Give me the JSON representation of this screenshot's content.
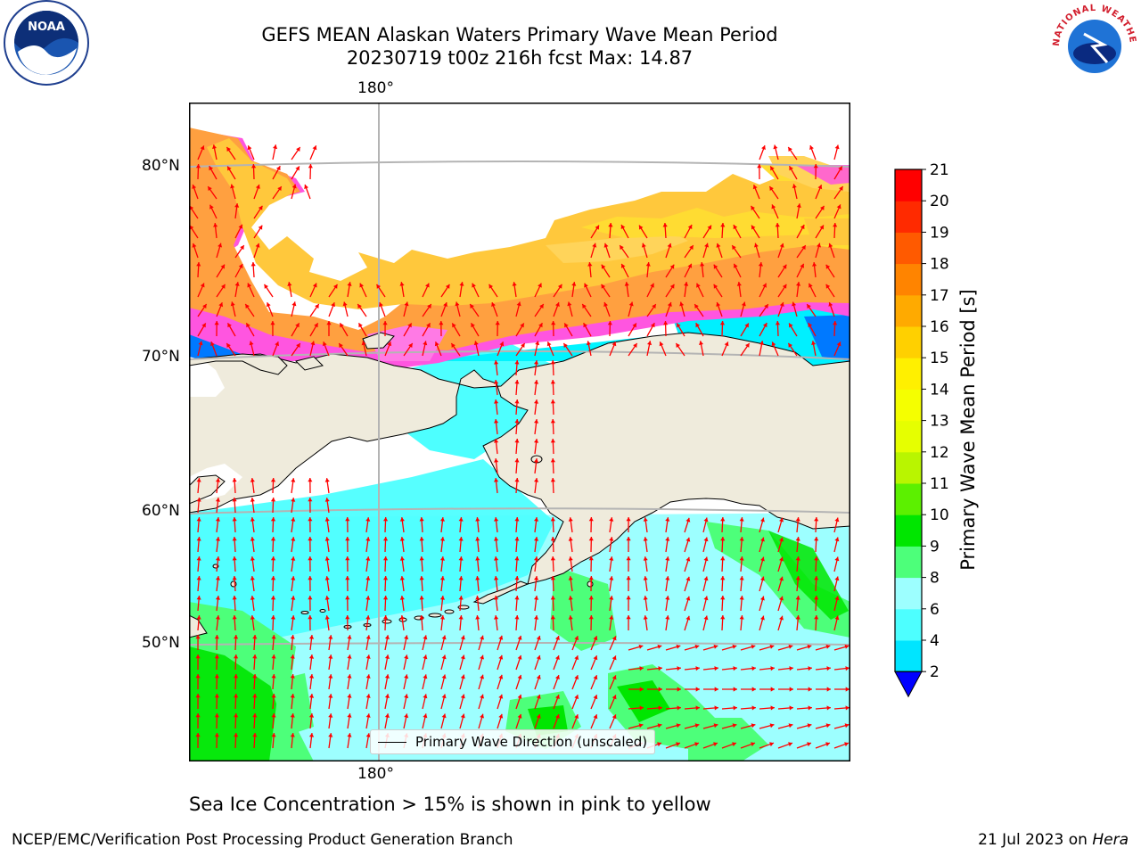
{
  "title": {
    "line1": "GEFS MEAN Alaskan Waters Primary Wave Mean Period",
    "line2": "20230719 t00z 216h fcst   Max: 14.87"
  },
  "axes": {
    "top_lon": "180°",
    "bottom_lon": "180°",
    "lat_labels": [
      "80°N",
      "70°N",
      "60°N",
      "50°N"
    ]
  },
  "legend": {
    "label": "Primary Wave Direction (unscaled)"
  },
  "colorbar": {
    "label": "Primary Wave Mean Period [s]",
    "ticks": [
      "2",
      "4",
      "6",
      "8",
      "9",
      "10",
      "11",
      "12",
      "13",
      "14",
      "15",
      "16",
      "17",
      "18",
      "19",
      "20",
      "21"
    ],
    "colors": [
      "#0079ff",
      "#00e5ff",
      "#4dffff",
      "#9dffff",
      "#4dff7a",
      "#00e600",
      "#5cf000",
      "#b9f500",
      "#e6ff00",
      "#f5ff00",
      "#fff000",
      "#ffd000",
      "#ffaa00",
      "#ff8400",
      "#ff5a00",
      "#ff2a00",
      "#ff0000"
    ],
    "under_color": "#0000ff"
  },
  "caption": "Sea Ice Concentration > 15% is shown in pink to yellow",
  "footer": {
    "left": "NCEP/EMC/Verification Post Processing Product Generation Branch",
    "right_prefix": "21 Jul 2023 on ",
    "right_host": "Hera"
  },
  "logos": {
    "noaa_text": "NOAA",
    "nws_text": "NATIONAL WEATHER SERVICE"
  },
  "colors": {
    "land": "#efebdc",
    "ice_pink": "#ff55e0",
    "ice_orange": "#ffbe3c",
    "ice_yellow": "#ffdc32",
    "arrow": "#ff0000"
  }
}
